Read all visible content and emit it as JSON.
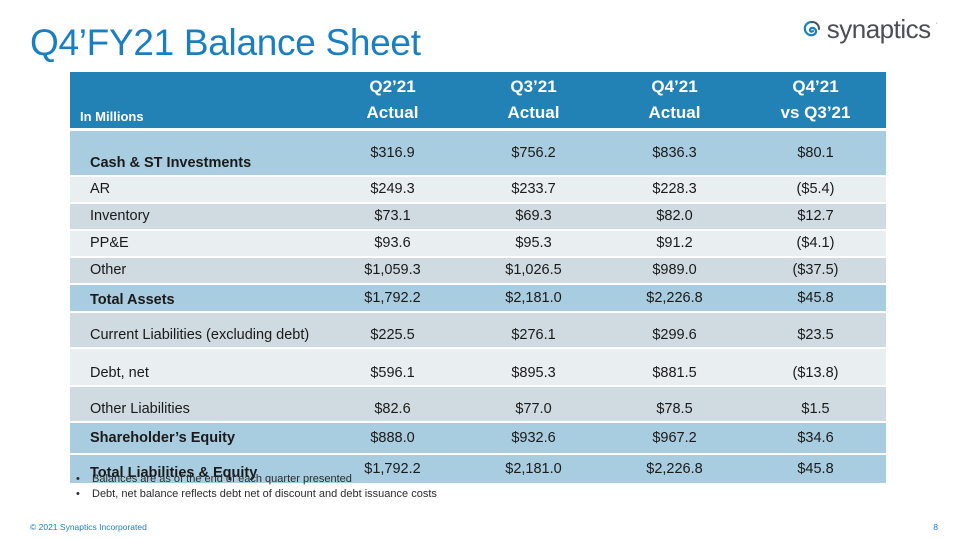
{
  "title": "Q4’FY21 Balance Sheet",
  "logo": {
    "wordmark": "synaptics",
    "mark": "·",
    "brand_color": "#1a7fc2"
  },
  "table": {
    "units_label": "In Millions",
    "columns": [
      {
        "line1": "Q2’21",
        "line2": "Actual"
      },
      {
        "line1": "Q3’21",
        "line2": "Actual"
      },
      {
        "line1": "Q4’21",
        "line2": "Actual"
      },
      {
        "line1": "Q4’21",
        "line2": "vs Q3’21"
      }
    ],
    "rows": [
      {
        "label": "Cash & ST Investments",
        "values": [
          "$316.9",
          "$756.2",
          "$836.3",
          "$80.1"
        ]
      },
      {
        "label": "AR",
        "values": [
          "$249.3",
          "$233.7",
          "$228.3",
          "($5.4)"
        ]
      },
      {
        "label": "Inventory",
        "values": [
          "$73.1",
          "$69.3",
          "$82.0",
          "$12.7"
        ]
      },
      {
        "label": "PP&E",
        "values": [
          "$93.6",
          "$95.3",
          "$91.2",
          "($4.1)"
        ]
      },
      {
        "label": "Other",
        "values": [
          "$1,059.3",
          "$1,026.5",
          "$989.0",
          "($37.5)"
        ]
      },
      {
        "label": "Total Assets",
        "values": [
          "$1,792.2",
          "$2,181.0",
          "$2,226.8",
          "$45.8"
        ]
      },
      {
        "label": "Current Liabilities (excluding debt)",
        "values": [
          "$225.5",
          "$276.1",
          "$299.6",
          "$23.5"
        ]
      },
      {
        "label": "Debt, net",
        "values": [
          "$596.1",
          "$895.3",
          "$881.5",
          "($13.8)"
        ]
      },
      {
        "label": "Other Liabilities",
        "values": [
          "$82.6",
          "$77.0",
          "$78.5",
          "$1.5"
        ]
      },
      {
        "label": "Shareholder’s Equity",
        "values": [
          "$888.0",
          "$932.6",
          "$967.2",
          "$34.6"
        ]
      },
      {
        "label": "Total Liabilities & Equity",
        "values": [
          "$1,792.2",
          "$2,181.0",
          "$2,226.8",
          "$45.8"
        ]
      }
    ]
  },
  "notes": [
    "Balances are as of the end of each quarter presented",
    "Debt, net balance reflects debt net of discount and debt issuance costs"
  ],
  "bullet_char": "•",
  "footer": {
    "copyright": "© 2021 Synaptics Incorporated",
    "page_number": "8"
  }
}
